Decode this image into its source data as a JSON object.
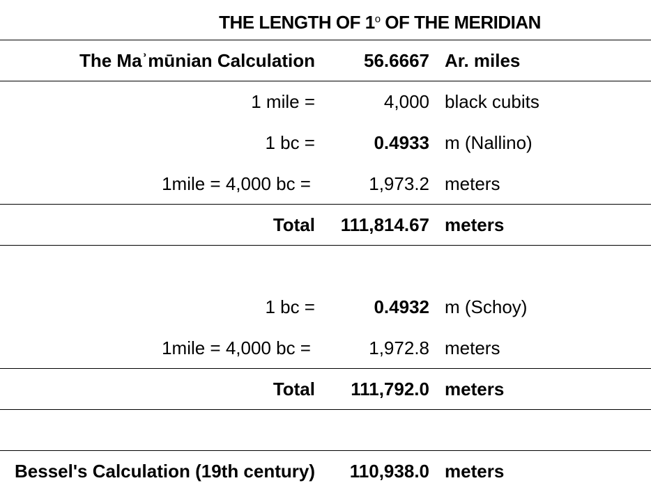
{
  "title": {
    "text": "THE LENGTH OF 1",
    "degree": "o",
    "rest": " OF THE MERIDIAN"
  },
  "rows": [
    {
      "label": "The Maʾmūnian Calculation",
      "value": "56.6667",
      "unit": "Ar. miles"
    },
    {
      "label": "1 mile =",
      "value": "4,000",
      "unit": "black cubits"
    },
    {
      "label": "1 bc =",
      "value": "0.4933",
      "unit": "m (Nallino)"
    },
    {
      "label": "1mile = 4,000 bc =",
      "value": "1,973.2",
      "unit": "meters"
    },
    {
      "label": "Total",
      "value": "111,814.67",
      "unit": "meters"
    },
    {
      "label": "1 bc =",
      "value": "0.4932",
      "unit": "m (Schoy)"
    },
    {
      "label": "1mile = 4,000 bc =",
      "value": "1,972.8",
      "unit": "meters"
    },
    {
      "label": "Total",
      "value": "111,792.0",
      "unit": "meters"
    },
    {
      "label": "Bessel's Calculation (19th century)",
      "value": "110,938.0",
      "unit": "meters"
    }
  ]
}
